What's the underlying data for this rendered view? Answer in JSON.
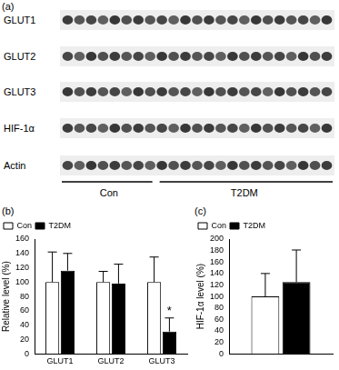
{
  "blot": {
    "panel_label": "(a)",
    "rows": [
      "GLUT1",
      "GLUT2",
      "GLUT3",
      "HIF-1α",
      "Actin"
    ],
    "groups": [
      "Con",
      "T2DM"
    ]
  },
  "chart_data": [
    {
      "panel_label": "(b)",
      "type": "bar",
      "categories": [
        "GLUT1",
        "GLUT2",
        "GLUT3"
      ],
      "series": [
        {
          "name": "Con",
          "color": "#ffffff",
          "values": [
            100,
            100,
            100
          ],
          "errors": [
            42,
            15,
            35
          ]
        },
        {
          "name": "T2DM",
          "color": "#000000",
          "values": [
            116,
            98,
            31
          ],
          "errors": [
            24,
            27,
            19
          ]
        }
      ],
      "y_label": "Relative level (%)",
      "ylim": [
        0,
        160
      ],
      "yticks": [
        0,
        20,
        40,
        60,
        80,
        100,
        120,
        140,
        160
      ],
      "grid": false,
      "legend": "upper left",
      "annotations": [
        {
          "text": "*",
          "category": "GLUT3",
          "series": "T2DM"
        }
      ]
    },
    {
      "panel_label": "(c)",
      "type": "bar",
      "categories": [
        null
      ],
      "series": [
        {
          "name": "Con",
          "color": "#ffffff",
          "values": [
            100
          ],
          "errors": [
            40
          ]
        },
        {
          "name": "T2DM",
          "color": "#000000",
          "values": [
            125
          ],
          "errors": [
            56
          ]
        }
      ],
      "y_label": "HIF-1α level (%)",
      "ylim": [
        0,
        200
      ],
      "yticks": [
        0,
        20,
        40,
        60,
        80,
        100,
        120,
        140,
        160,
        180,
        200
      ],
      "grid": false,
      "legend": "upper left"
    }
  ]
}
